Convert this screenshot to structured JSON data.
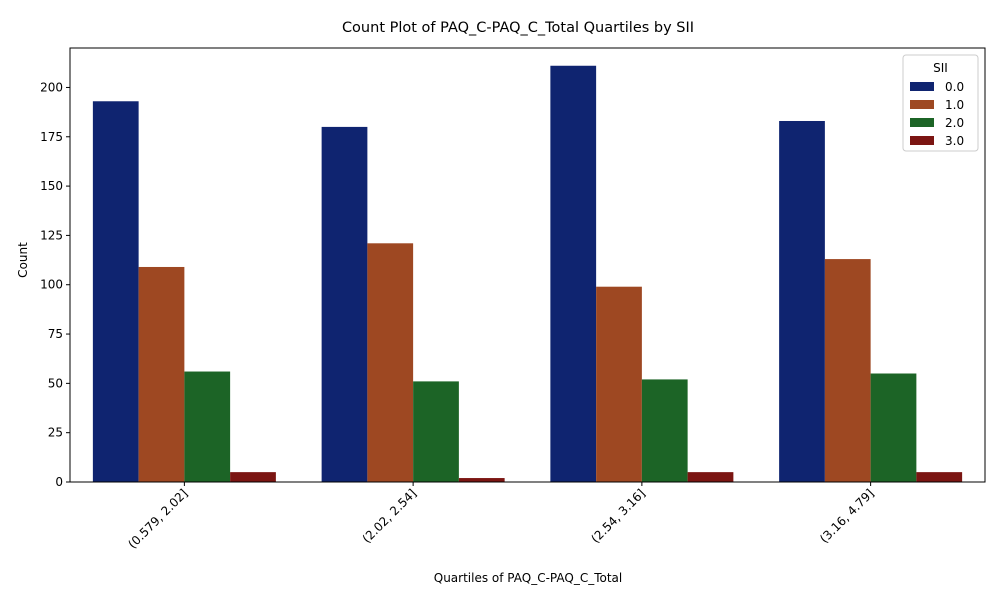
{
  "chart_data": {
    "type": "bar",
    "title": "Count Plot of PAQ_C-PAQ_C_Total Quartiles by SII",
    "xlabel": "Quartiles of PAQ_C-PAQ_C_Total",
    "ylabel": "Count",
    "categories": [
      "(0.579, 2.02]",
      "(2.02, 2.54]",
      "(2.54, 3.16]",
      "(3.16, 4.79]"
    ],
    "ylim": [
      0,
      220
    ],
    "yticks": [
      0,
      25,
      50,
      75,
      100,
      125,
      150,
      175,
      200
    ],
    "grid": false,
    "legend": {
      "title": "SII",
      "placement": "top-right"
    },
    "series": [
      {
        "name": "0.0",
        "color": "#0f2470",
        "values": [
          193,
          180,
          211,
          183
        ]
      },
      {
        "name": "1.0",
        "color": "#9e4822",
        "values": [
          109,
          121,
          99,
          113
        ]
      },
      {
        "name": "2.0",
        "color": "#1c6426",
        "values": [
          56,
          51,
          52,
          55
        ]
      },
      {
        "name": "3.0",
        "color": "#7b1512",
        "values": [
          5,
          2,
          5,
          5
        ]
      }
    ]
  }
}
